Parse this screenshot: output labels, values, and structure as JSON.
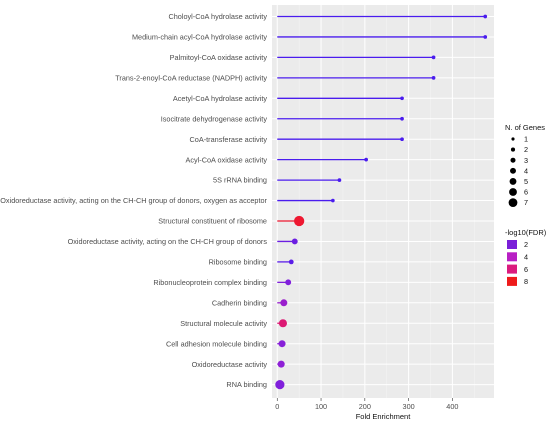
{
  "chart_data": {
    "type": "lollipop",
    "xlabel": "Fold Enrichment",
    "ylabel": "",
    "xlim": [
      -12,
      495
    ],
    "xticks": [
      0,
      100,
      200,
      300,
      400
    ],
    "grid": true,
    "categories": [
      "Choloyl-CoA hydrolase activity",
      "Medium-chain acyl-CoA hydrolase activity",
      "Palmitoyl-CoA oxidase activity",
      "Trans-2-enoyl-CoA reductase (NADPH) activity",
      "Acetyl-CoA hydrolase activity",
      "Isocitrate dehydrogenase activity",
      "CoA-transferase activity",
      "Acyl-CoA oxidase activity",
      "5S rRNA binding",
      "Oxidoreductase activity, acting on the CH-CH group of donors, oxygen as acceptor",
      "Structural constituent of ribosome",
      "Oxidoreductase activity, acting on the CH-CH group of donors",
      "Ribosome binding",
      "Ribonucleoprotein complex binding",
      "Cadherin binding",
      "Structural molecule activity",
      "Cell adhesion molecule binding",
      "Oxidoreductase activity",
      "RNA binding"
    ],
    "fold_enrichment": [
      475,
      475,
      357,
      357,
      285,
      285,
      285,
      203,
      142,
      127,
      50,
      40,
      32,
      25,
      15,
      13,
      11,
      9,
      6
    ],
    "genes": [
      1,
      1,
      1,
      1,
      1,
      1,
      1,
      1,
      1,
      1,
      7,
      3,
      2,
      3,
      4,
      5,
      4,
      4,
      6
    ],
    "neg_log10_fdr": [
      1,
      1,
      1,
      1,
      1,
      1,
      1,
      1,
      1,
      1,
      8.3,
      2,
      1.5,
      2.6,
      3.4,
      6.5,
      2.8,
      3,
      2.6
    ],
    "legend_size": {
      "title": "N. of Genes",
      "values": [
        1,
        2,
        3,
        4,
        5,
        6,
        7
      ],
      "labels": [
        "1",
        "2",
        "3",
        "4",
        "5",
        "6",
        "7"
      ]
    },
    "legend_color": {
      "title": "-log10(FDR)",
      "values": [
        2,
        4,
        6,
        8
      ],
      "labels": [
        "2",
        "4",
        "6",
        "8"
      ],
      "colors": [
        "#7a1fd8",
        "#b81fc4",
        "#db1b7e",
        "#ee1b1b"
      ]
    },
    "legend_placement": "right"
  }
}
